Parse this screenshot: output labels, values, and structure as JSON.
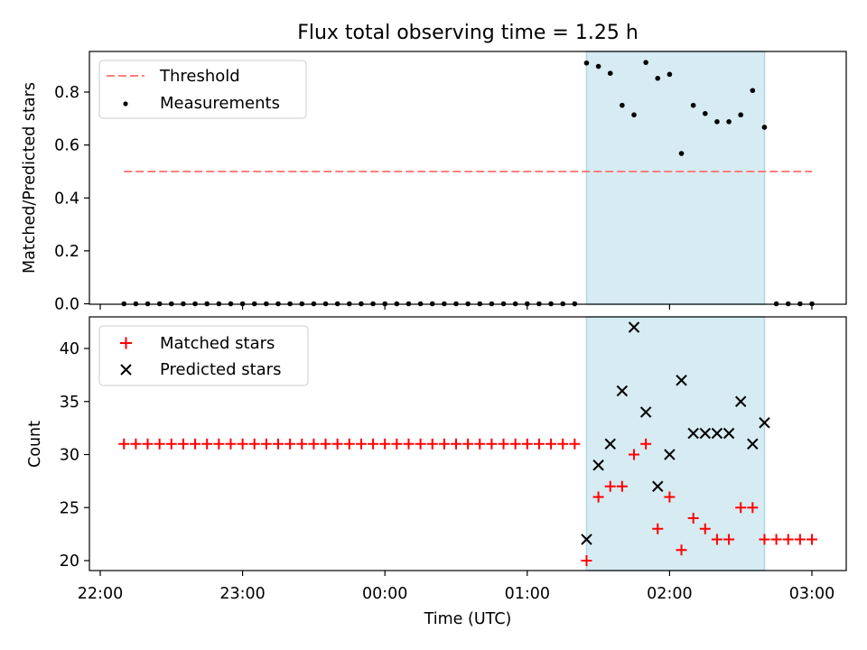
{
  "title": "Flux total observing time = 1.25 h",
  "xlabel": "Time (UTC)",
  "xtick_labels": [
    "22:00",
    "23:00",
    "00:00",
    "01:00",
    "02:00",
    "03:00"
  ],
  "colors": {
    "threshold": "#ff7f7f",
    "measurements": "#000000",
    "matched": "#ff0000",
    "predicted": "#000000",
    "span": "#add8e6"
  },
  "chart_data": [
    {
      "type": "scatter",
      "ylabel": "Matched/Predicted stars",
      "ylim": [
        0,
        0.95
      ],
      "yticks": [
        0.0,
        0.2,
        0.4,
        0.6,
        0.8
      ],
      "ytick_labels": [
        "0.0",
        "0.2",
        "0.4",
        "0.6",
        "0.8"
      ],
      "legend_position": "top-left",
      "shaded_span": [
        "01:25",
        "02:40"
      ],
      "series": [
        {
          "name": "Threshold",
          "style": "dashed-line",
          "x": [
            "22:10",
            "03:00"
          ],
          "y": [
            0.5,
            0.5
          ]
        },
        {
          "name": "Measurements",
          "style": "dot",
          "x": [
            "22:10",
            "22:15",
            "22:20",
            "22:25",
            "22:30",
            "22:35",
            "22:40",
            "22:45",
            "22:50",
            "22:55",
            "23:00",
            "23:05",
            "23:10",
            "23:15",
            "23:20",
            "23:25",
            "23:30",
            "23:35",
            "23:40",
            "23:45",
            "23:50",
            "23:55",
            "00:00",
            "00:05",
            "00:10",
            "00:15",
            "00:20",
            "00:25",
            "00:30",
            "00:35",
            "00:40",
            "00:45",
            "00:50",
            "00:55",
            "01:00",
            "01:05",
            "01:10",
            "01:15",
            "01:20",
            "01:25",
            "01:30",
            "01:35",
            "01:40",
            "01:45",
            "01:50",
            "01:55",
            "02:00",
            "02:05",
            "02:10",
            "02:15",
            "02:20",
            "02:25",
            "02:30",
            "02:35",
            "02:40",
            "02:45",
            "02:50",
            "02:55",
            "03:00"
          ],
          "y": [
            0,
            0,
            0,
            0,
            0,
            0,
            0,
            0,
            0,
            0,
            0,
            0,
            0,
            0,
            0,
            0,
            0,
            0,
            0,
            0,
            0,
            0,
            0,
            0,
            0,
            0,
            0,
            0,
            0,
            0,
            0,
            0,
            0,
            0,
            0,
            0,
            0,
            0,
            0,
            0.91,
            0.897,
            0.871,
            0.75,
            0.714,
            0.912,
            0.852,
            0.867,
            0.568,
            0.75,
            0.719,
            0.688,
            0.688,
            0.714,
            0.806,
            0.667,
            0,
            0,
            0,
            0
          ]
        }
      ]
    },
    {
      "type": "scatter",
      "ylabel": "Count",
      "ylim": [
        19,
        43
      ],
      "yticks": [
        20,
        25,
        30,
        35,
        40
      ],
      "ytick_labels": [
        "20",
        "25",
        "30",
        "35",
        "40"
      ],
      "legend_position": "top-left",
      "shaded_span": [
        "01:25",
        "02:40"
      ],
      "series": [
        {
          "name": "Matched stars",
          "style": "plus",
          "x": [
            "22:10",
            "22:15",
            "22:20",
            "22:25",
            "22:30",
            "22:35",
            "22:40",
            "22:45",
            "22:50",
            "22:55",
            "23:00",
            "23:05",
            "23:10",
            "23:15",
            "23:20",
            "23:25",
            "23:30",
            "23:35",
            "23:40",
            "23:45",
            "23:50",
            "23:55",
            "00:00",
            "00:05",
            "00:10",
            "00:15",
            "00:20",
            "00:25",
            "00:30",
            "00:35",
            "00:40",
            "00:45",
            "00:50",
            "00:55",
            "01:00",
            "01:05",
            "01:10",
            "01:15",
            "01:20",
            "01:25",
            "01:30",
            "01:35",
            "01:40",
            "01:45",
            "01:50",
            "01:55",
            "02:00",
            "02:05",
            "02:10",
            "02:15",
            "02:20",
            "02:25",
            "02:30",
            "02:35",
            "02:40",
            "02:45",
            "02:50",
            "02:55",
            "03:00"
          ],
          "y": [
            31,
            31,
            31,
            31,
            31,
            31,
            31,
            31,
            31,
            31,
            31,
            31,
            31,
            31,
            31,
            31,
            31,
            31,
            31,
            31,
            31,
            31,
            31,
            31,
            31,
            31,
            31,
            31,
            31,
            31,
            31,
            31,
            31,
            31,
            31,
            31,
            31,
            31,
            31,
            20,
            26,
            27,
            27,
            30,
            31,
            23,
            26,
            21,
            24,
            23,
            22,
            22,
            25,
            25,
            22,
            22,
            22,
            22,
            22
          ]
        },
        {
          "name": "Predicted stars",
          "style": "x",
          "x": [
            "01:25",
            "01:30",
            "01:35",
            "01:40",
            "01:45",
            "01:50",
            "01:55",
            "02:00",
            "02:05",
            "02:10",
            "02:15",
            "02:20",
            "02:25",
            "02:30",
            "02:35",
            "02:40"
          ],
          "y": [
            22,
            29,
            31,
            36,
            42,
            34,
            27,
            30,
            37,
            32,
            32,
            32,
            32,
            35,
            31,
            33
          ]
        }
      ]
    }
  ]
}
